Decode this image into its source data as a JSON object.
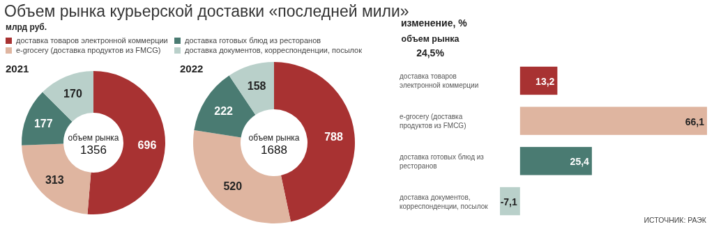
{
  "chart_data": [
    {
      "type": "donut",
      "title": "Объем рынка курьерской доставки «последней мили»",
      "subtitle": "млрд руб.",
      "categories": [
        "доставка товаров электронной коммерции",
        "e-grocery (доставка продуктов из FMCG)",
        "доставка готовых блюд из ресторанов",
        "доставка документов, корреспонденции, посылок"
      ],
      "values": [
        696,
        313,
        177,
        170
      ],
      "colors": [
        "#a83232",
        "#dfb5a0",
        "#4a7b72",
        "#b9d0ca"
      ],
      "data_labels": true,
      "legend": "top",
      "annotations": [
        "2021",
        "объем рынка",
        "1356"
      ]
    },
    {
      "type": "donut",
      "categories": [
        null,
        null,
        null,
        null
      ],
      "values": [
        788,
        520,
        222,
        158
      ],
      "colors": [
        "#a83232",
        "#dfb5a0",
        "#4a7b72",
        "#b9d0ca"
      ],
      "data_labels": true,
      "annotations": [
        "2022",
        "объем рынка",
        "1688"
      ]
    },
    {
      "type": "bar",
      "orientation": "horizontal",
      "title": "изменение, %",
      "categories": [
        "доставка товаров электронной коммерции",
        "e-grocery (доставка продуктов из FMCG)",
        "доставка готовых блюд из ресторанов",
        "доставка документов, корреспонденции, посылок"
      ],
      "values": [
        13.2,
        66.1,
        25.4,
        -7.1
      ],
      "colors": [
        "#a83232",
        "#dfb5a0",
        "#4a7b72",
        "#b9d0ca"
      ],
      "value_labels": [
        "13,2",
        "66,1",
        "25,4",
        "-7,1"
      ],
      "annotations": [
        "объем рынка",
        "24,5%",
        "ИСТОЧНИК: РАЭК"
      ]
    }
  ]
}
